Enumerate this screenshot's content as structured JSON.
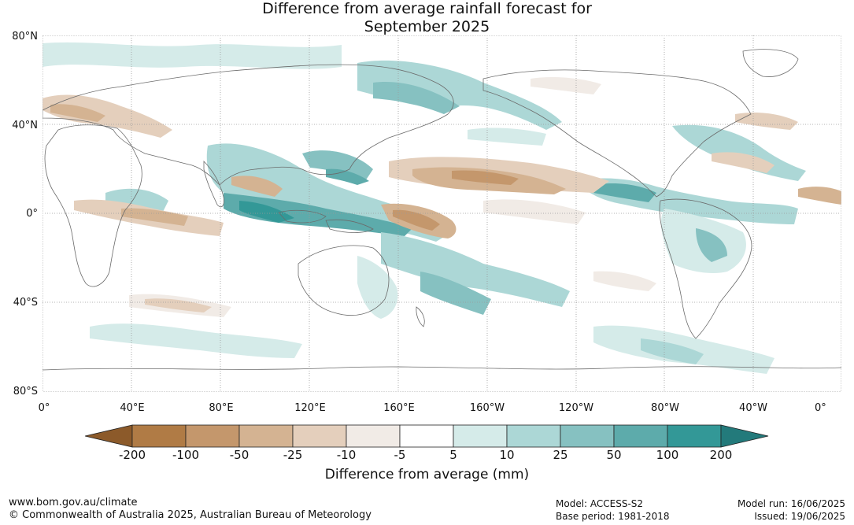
{
  "title_line1": "Difference from average rainfall forecast for",
  "title_line2": "September 2025",
  "lat_labels": [
    "80°N",
    "40°N",
    "0°",
    "40°S",
    "80°S"
  ],
  "lon_labels": [
    "0°",
    "40°E",
    "80°E",
    "120°E",
    "160°E",
    "160°W",
    "120°W",
    "80°W",
    "40°W",
    "0°"
  ],
  "legend": {
    "title": "Difference from average (mm)",
    "ticks": [
      "-200",
      "-100",
      "-50",
      "-25",
      "-10",
      "-5",
      "5",
      "10",
      "25",
      "50",
      "100",
      "200"
    ],
    "colors": [
      "#8c5a2a",
      "#b07b45",
      "#c4976c",
      "#d4b392",
      "#e4cfbc",
      "#f1ebe6",
      "#ffffff",
      "#d5ebe9",
      "#acd7d6",
      "#86c1c1",
      "#5dabab",
      "#339897",
      "#237a7b"
    ]
  },
  "footer": {
    "website": "www.bom.gov.au/climate",
    "copyright": "© Commonwealth of Australia 2025, Australian Bureau of Meteorology",
    "model": "Model: ACCESS-S2",
    "base_period": "Base period: 1981-2018",
    "model_run": "Model run: 16/06/2025",
    "issued": "Issued: 19/06/2025"
  }
}
